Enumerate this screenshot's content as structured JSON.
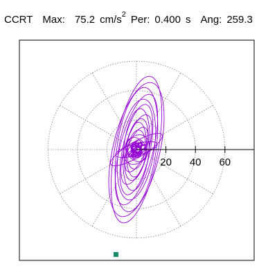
{
  "header": {
    "station": "CCRT",
    "max_label": "Max:",
    "max_value": "75.2",
    "max_unit": "cm/s",
    "max_unit_sup": "2",
    "per_label": "Per:",
    "per_value": "0.400",
    "per_unit": "s",
    "ang_label": "Ang:",
    "ang_value": "259.3"
  },
  "chart_data": {
    "type": "scatter",
    "description_kind": "polar particle-motion orbit plot",
    "radial_ticks": [
      "20",
      "40",
      "60"
    ],
    "radial_tick_values": [
      20,
      40,
      60
    ],
    "radial_grid": [
      20,
      40,
      60
    ],
    "angular_grid_deg": [
      0,
      30,
      60,
      90,
      120,
      150,
      180,
      210,
      240,
      270,
      300,
      330
    ],
    "grid": true,
    "max_abs": 75.2,
    "ellipses": [
      {
        "a": 76,
        "b": 22,
        "angle_deg": 259.3
      },
      {
        "a": 70,
        "b": 24,
        "angle_deg": 257
      },
      {
        "a": 64,
        "b": 20,
        "angle_deg": 262
      },
      {
        "a": 58,
        "b": 17,
        "angle_deg": 256
      },
      {
        "a": 52,
        "b": 18,
        "angle_deg": 261
      },
      {
        "a": 47,
        "b": 14,
        "angle_deg": 258
      },
      {
        "a": 42,
        "b": 13,
        "angle_deg": 264
      },
      {
        "a": 37,
        "b": 12,
        "angle_deg": 253
      },
      {
        "a": 32,
        "b": 11,
        "angle_deg": 260
      },
      {
        "a": 28,
        "b": 10,
        "angle_deg": 265
      },
      {
        "a": 24,
        "b": 9,
        "angle_deg": 250
      },
      {
        "a": 20,
        "b": 9,
        "angle_deg": 262
      },
      {
        "a": 16,
        "b": 12,
        "angle_deg": 240
      },
      {
        "a": 13,
        "b": 10,
        "angle_deg": 300
      },
      {
        "a": 30,
        "b": 8,
        "angle_deg": 210
      },
      {
        "a": 22,
        "b": 6,
        "angle_deg": 195
      },
      {
        "a": 9,
        "b": 6,
        "angle_deg": 20
      },
      {
        "a": 6,
        "b": 4,
        "angle_deg": 100
      },
      {
        "a": 5,
        "b": 3,
        "angle_deg": 160
      }
    ],
    "marker": {
      "x": -16.0,
      "y": -73.4,
      "color": "#1b8a6b"
    },
    "colors": {
      "trace": "#9400d3",
      "axis": "#000000",
      "grid": "#808080",
      "frame": "#000000"
    }
  }
}
